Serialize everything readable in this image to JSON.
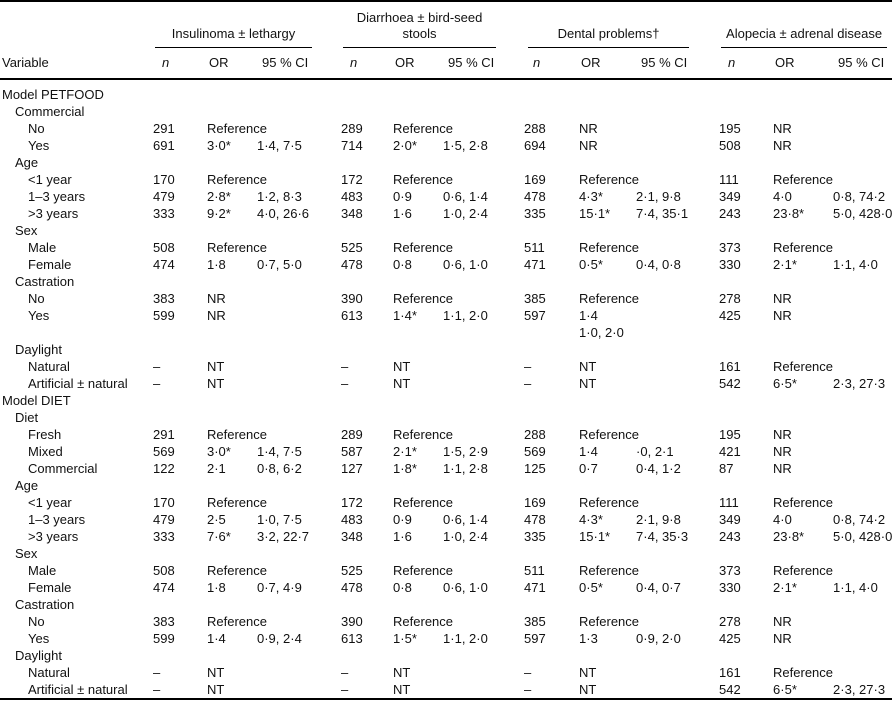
{
  "table": {
    "variable_header": "Variable",
    "groups": [
      {
        "label": "Insulinoma ± lethargy",
        "subheaders": [
          "n",
          "OR",
          "95 % CI"
        ]
      },
      {
        "label": "Diarrhoea ± bird-seed stools",
        "subheaders": [
          "n",
          "OR",
          "95 % CI"
        ]
      },
      {
        "label": "Dental problems†",
        "subheaders": [
          "n",
          "OR",
          "95 % CI"
        ]
      },
      {
        "label": "Alopecia ± adrenal disease",
        "subheaders": [
          "n",
          "OR",
          "95 % CI"
        ]
      }
    ],
    "abbreviations": {
      "NR": "NR",
      "NT": "NT",
      "reference_label": "Reference",
      "empty_marker": "–"
    },
    "rows": [
      {
        "indent": 0,
        "label": "Model PETFOOD"
      },
      {
        "indent": 1,
        "label": "Commercial"
      },
      {
        "indent": 2,
        "label": "No",
        "cells": [
          "291",
          "Reference",
          "",
          "289",
          "Reference",
          "",
          "288",
          "NR",
          "",
          "195",
          "NR",
          ""
        ]
      },
      {
        "indent": 2,
        "label": "Yes",
        "cells": [
          "691",
          "3·0*",
          "1·4, 7·5",
          "714",
          "2·0*",
          "1·5, 2·8",
          "694",
          "NR",
          "",
          "508",
          "NR",
          ""
        ]
      },
      {
        "indent": 1,
        "label": "Age"
      },
      {
        "indent": 2,
        "label": "<1 year",
        "cells": [
          "170",
          "Reference",
          "",
          "172",
          "Reference",
          "",
          "169",
          "Reference",
          "",
          "111",
          "Reference",
          ""
        ]
      },
      {
        "indent": 2,
        "label": "1–3 years",
        "cells": [
          "479",
          "2·8*",
          "1·2, 8·3",
          "483",
          "0·9",
          "0·6, 1·4",
          "478",
          "4·3*",
          "2·1, 9·8",
          "349",
          "4·0",
          "0·8, 74·2"
        ]
      },
      {
        "indent": 2,
        "label": ">3 years",
        "cells": [
          "333",
          "9·2*",
          "4·0, 26·6",
          "348",
          "1·6",
          "1·0, 2·4",
          "335",
          "15·1*",
          "7·4, 35·1",
          "243",
          "23·8*",
          "5·0, 428·0"
        ]
      },
      {
        "indent": 1,
        "label": "Sex"
      },
      {
        "indent": 2,
        "label": "Male",
        "cells": [
          "508",
          "Reference",
          "",
          "525",
          "Reference",
          "",
          "511",
          "Reference",
          "",
          "373",
          "Reference",
          ""
        ]
      },
      {
        "indent": 2,
        "label": "Female",
        "cells": [
          "474",
          "1·8",
          "0·7, 5·0",
          "478",
          "0·8",
          "0·6, 1·0",
          "471",
          "0·5*",
          "0·4, 0·8",
          "330",
          "2·1*",
          "1·1, 4·0"
        ]
      },
      {
        "indent": 1,
        "label": "Castration"
      },
      {
        "indent": 2,
        "label": "No",
        "cells": [
          "383",
          "NR",
          "",
          "390",
          "Reference",
          "",
          "385",
          "Reference",
          "",
          "278",
          "NR",
          ""
        ]
      },
      {
        "indent": 2,
        "label": "Yes",
        "cells": [
          "599",
          "NR",
          "",
          "613",
          "1·4*",
          "1·1, 2·0",
          "597",
          "1·4\n1·0, 2·0",
          "",
          "425",
          "NR",
          ""
        ]
      },
      {
        "indent": 1,
        "label": "Daylight"
      },
      {
        "indent": 2,
        "label": "Natural",
        "cells": [
          "–",
          "NT",
          "",
          "–",
          "NT",
          "",
          "–",
          "NT",
          "",
          "161",
          "Reference",
          ""
        ]
      },
      {
        "indent": 2,
        "label": "Artificial ± natural",
        "cells": [
          "–",
          "NT",
          "",
          "–",
          "NT",
          "",
          "–",
          "NT",
          "",
          "542",
          "6·5*",
          "2·3, 27·3"
        ]
      },
      {
        "indent": 0,
        "label": "Model DIET"
      },
      {
        "indent": 1,
        "label": "Diet"
      },
      {
        "indent": 2,
        "label": "Fresh",
        "cells": [
          "291",
          "Reference",
          "",
          "289",
          "Reference",
          "",
          "288",
          "Reference",
          "",
          "195",
          "NR",
          ""
        ]
      },
      {
        "indent": 2,
        "label": "Mixed",
        "cells": [
          "569",
          "3·0*",
          "1·4, 7·5",
          "587",
          "2·1*",
          "1·5, 2·9",
          "569",
          "1·4",
          "·0, 2·1",
          "421",
          "NR",
          ""
        ]
      },
      {
        "indent": 2,
        "label": "Commercial",
        "cells": [
          "122",
          "2·1",
          "0·8, 6·2",
          "127",
          "1·8*",
          "1·1, 2·8",
          "125",
          "0·7",
          "0·4, 1·2",
          "87",
          "NR",
          ""
        ]
      },
      {
        "indent": 1,
        "label": "Age"
      },
      {
        "indent": 2,
        "label": "<1 year",
        "cells": [
          "170",
          "Reference",
          "",
          "172",
          "Reference",
          "",
          "169",
          "Reference",
          "",
          "111",
          "Reference",
          ""
        ]
      },
      {
        "indent": 2,
        "label": "1–3 years",
        "cells": [
          "479",
          "2·5",
          "1·0, 7·5",
          "483",
          "0·9",
          "0·6, 1·4",
          "478",
          "4·3*",
          "2·1, 9·8",
          "349",
          "4·0",
          "0·8, 74·2"
        ]
      },
      {
        "indent": 2,
        "label": ">3 years",
        "cells": [
          "333",
          "7·6*",
          "3·2, 22·7",
          "348",
          "1·6",
          "1·0, 2·4",
          "335",
          "15·1*",
          "7·4, 35·3",
          "243",
          "23·8*",
          "5·0, 428·0"
        ]
      },
      {
        "indent": 1,
        "label": "Sex"
      },
      {
        "indent": 2,
        "label": "Male",
        "cells": [
          "508",
          "Reference",
          "",
          "525",
          "Reference",
          "",
          "511",
          "Reference",
          "",
          "373",
          "Reference",
          ""
        ]
      },
      {
        "indent": 2,
        "label": "Female",
        "cells": [
          "474",
          "1·8",
          "0·7, 4·9",
          "478",
          "0·8",
          "0·6, 1·0",
          "471",
          "0·5*",
          "0·4, 0·7",
          "330",
          "2·1*",
          "1·1, 4·0"
        ]
      },
      {
        "indent": 1,
        "label": "Castration"
      },
      {
        "indent": 2,
        "label": "No",
        "cells": [
          "383",
          "Reference",
          "",
          "390",
          "Reference",
          "",
          "385",
          "Reference",
          "",
          "278",
          "NR",
          ""
        ]
      },
      {
        "indent": 2,
        "label": "Yes",
        "cells": [
          "599",
          "1·4",
          "0·9, 2·4",
          "613",
          "1·5*",
          "1·1, 2·0",
          "597",
          "1·3",
          "0·9, 2·0",
          "425",
          "NR",
          ""
        ]
      },
      {
        "indent": 1,
        "label": "Daylight"
      },
      {
        "indent": 2,
        "label": "Natural",
        "cells": [
          "–",
          "NT",
          "",
          "–",
          "NT",
          "",
          "–",
          "NT",
          "",
          "161",
          "Reference",
          ""
        ]
      },
      {
        "indent": 2,
        "label": "Artificial ± natural",
        "cells": [
          "–",
          "NT",
          "",
          "–",
          "NT",
          "",
          "–",
          "NT",
          "",
          "542",
          "6·5*",
          "2·3, 27·3"
        ]
      }
    ]
  }
}
